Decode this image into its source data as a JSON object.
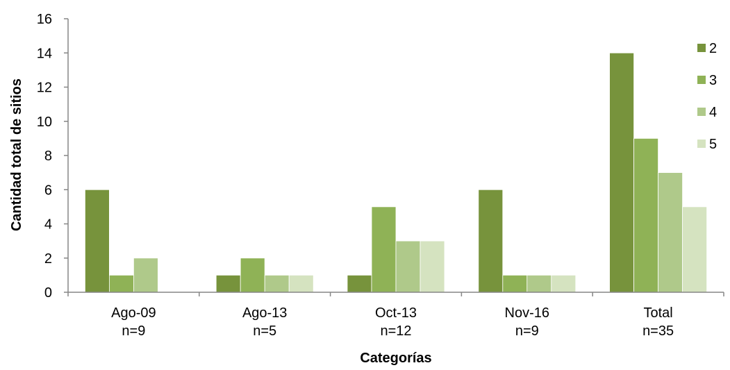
{
  "chart_data": {
    "type": "bar",
    "title": "",
    "xlabel": "Categorías",
    "ylabel": "Cantidad total de sitios",
    "categories": [
      [
        "Ago-09",
        "n=9"
      ],
      [
        "Ago-13",
        "n=5"
      ],
      [
        "Oct-13",
        "n=12"
      ],
      [
        "Nov-16",
        "n=9"
      ],
      [
        "Total",
        "n=35"
      ]
    ],
    "series": [
      {
        "name": "2",
        "color": "#77933c",
        "values": [
          6,
          1,
          1,
          6,
          14
        ]
      },
      {
        "name": "3",
        "color": "#8fb256",
        "values": [
          1,
          2,
          5,
          1,
          9
        ]
      },
      {
        "name": "4",
        "color": "#afc98a",
        "values": [
          2,
          1,
          3,
          1,
          7
        ]
      },
      {
        "name": "5",
        "color": "#d5e3c0",
        "values": [
          0,
          1,
          3,
          1,
          5
        ]
      }
    ],
    "ylim": [
      0,
      16
    ],
    "yticks": [
      0,
      2,
      4,
      6,
      8,
      10,
      12,
      14,
      16
    ],
    "grid": false,
    "legend": "right"
  }
}
